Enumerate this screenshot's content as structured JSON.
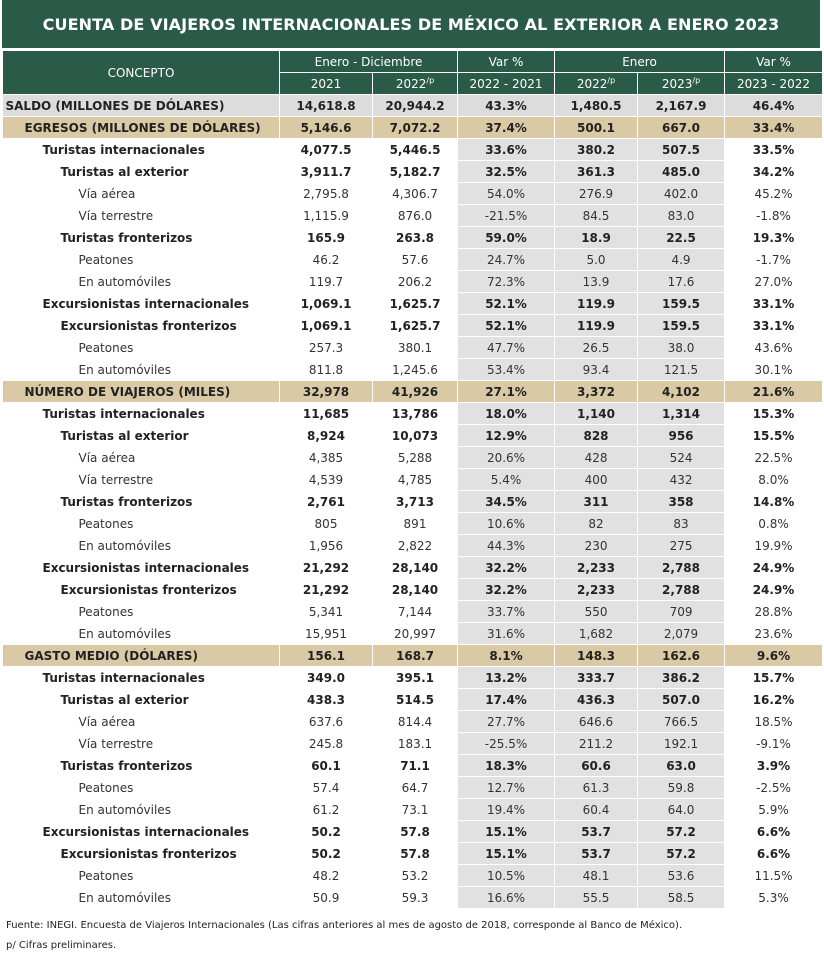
{
  "header": {
    "title": "CUENTA DE VIAJEROS INTERNACIONALES DE MÉXICO AL EXTERIOR A ENERO 2023",
    "concept": "CONCEPTO",
    "groups": [
      "Enero - Diciembre",
      "Var %",
      "Enero",
      "Var %"
    ],
    "subheaders": [
      {
        "label": "2021"
      },
      {
        "label": "2022",
        "note": "/p"
      },
      {
        "label": "2022 - 2021"
      },
      {
        "label": "2022",
        "note": "/p"
      },
      {
        "label": "2023",
        "note": "/p"
      },
      {
        "label": "2023 - 2022"
      }
    ]
  },
  "table": {
    "rows": [
      [
        "SALDO (MILLONES DE DÓLARES)",
        "14,618.8",
        "20,944.2",
        "43.3%",
        "1,480.5",
        "2,167.9",
        "46.4%"
      ],
      [
        "EGRESOS (MILLONES DE DÓLARES)",
        "5,146.6",
        "7,072.2",
        "37.4%",
        "500.1",
        "667.0",
        "33.4%"
      ],
      [
        "Turistas internacionales",
        "4,077.5",
        "5,446.5",
        "33.6%",
        "380.2",
        "507.5",
        "33.5%"
      ],
      [
        "Turistas al exterior",
        "3,911.7",
        "5,182.7",
        "32.5%",
        "361.3",
        "485.0",
        "34.2%"
      ],
      [
        "Vía aérea",
        "2,795.8",
        "4,306.7",
        "54.0%",
        "276.9",
        "402.0",
        "45.2%"
      ],
      [
        "Vía terrestre",
        "1,115.9",
        "876.0",
        "-21.5%",
        "84.5",
        "83.0",
        "-1.8%"
      ],
      [
        "Turistas fronterizos",
        "165.9",
        "263.8",
        "59.0%",
        "18.9",
        "22.5",
        "19.3%"
      ],
      [
        "Peatones",
        "46.2",
        "57.6",
        "24.7%",
        "5.0",
        "4.9",
        "-1.7%"
      ],
      [
        "En automóviles",
        "119.7",
        "206.2",
        "72.3%",
        "13.9",
        "17.6",
        "27.0%"
      ],
      [
        "Excursionistas internacionales",
        "1,069.1",
        "1,625.7",
        "52.1%",
        "119.9",
        "159.5",
        "33.1%"
      ],
      [
        "Excursionistas fronterizos",
        "1,069.1",
        "1,625.7",
        "52.1%",
        "119.9",
        "159.5",
        "33.1%"
      ],
      [
        "Peatones",
        "257.3",
        "380.1",
        "47.7%",
        "26.5",
        "38.0",
        "43.6%"
      ],
      [
        "En automóviles",
        "811.8",
        "1,245.6",
        "53.4%",
        "93.4",
        "121.5",
        "30.1%"
      ],
      [
        "NÚMERO DE VIAJEROS (MILES)",
        "32,978",
        "41,926",
        "27.1%",
        "3,372",
        "4,102",
        "21.6%"
      ],
      [
        "Turistas internacionales",
        "11,685",
        "13,786",
        "18.0%",
        "1,140",
        "1,314",
        "15.3%"
      ],
      [
        "Turistas al exterior",
        "8,924",
        "10,073",
        "12.9%",
        "828",
        "956",
        "15.5%"
      ],
      [
        "Vía aérea",
        "4,385",
        "5,288",
        "20.6%",
        "428",
        "524",
        "22.5%"
      ],
      [
        "Vía terrestre",
        "4,539",
        "4,785",
        "5.4%",
        "400",
        "432",
        "8.0%"
      ],
      [
        "Turistas fronterizos",
        "2,761",
        "3,713",
        "34.5%",
        "311",
        "358",
        "14.8%"
      ],
      [
        "Peatones",
        "805",
        "891",
        "10.6%",
        "82",
        "83",
        "0.8%"
      ],
      [
        "En automóviles",
        "1,956",
        "2,822",
        "44.3%",
        "230",
        "275",
        "19.9%"
      ],
      [
        "Excursionistas internacionales",
        "21,292",
        "28,140",
        "32.2%",
        "2,233",
        "2,788",
        "24.9%"
      ],
      [
        "Excursionistas fronterizos",
        "21,292",
        "28,140",
        "32.2%",
        "2,233",
        "2,788",
        "24.9%"
      ],
      [
        "Peatones",
        "5,341",
        "7,144",
        "33.7%",
        "550",
        "709",
        "28.8%"
      ],
      [
        "En automóviles",
        "15,951",
        "20,997",
        "31.6%",
        "1,682",
        "2,079",
        "23.6%"
      ],
      [
        "GASTO MEDIO (DÓLARES)",
        "156.1",
        "168.7",
        "8.1%",
        "148.3",
        "162.6",
        "9.6%"
      ],
      [
        "Turistas internacionales",
        "349.0",
        "395.1",
        "13.2%",
        "333.7",
        "386.2",
        "15.7%"
      ],
      [
        "Turistas al exterior",
        "438.3",
        "514.5",
        "17.4%",
        "436.3",
        "507.0",
        "16.2%"
      ],
      [
        "Vía aérea",
        "637.6",
        "814.4",
        "27.7%",
        "646.6",
        "766.5",
        "18.5%"
      ],
      [
        "Vía terrestre",
        "245.8",
        "183.1",
        "-25.5%",
        "211.2",
        "192.1",
        "-9.1%"
      ],
      [
        "Turistas fronterizos",
        "60.1",
        "71.1",
        "18.3%",
        "60.6",
        "63.0",
        "3.9%"
      ],
      [
        "Peatones",
        "57.4",
        "64.7",
        "12.7%",
        "61.3",
        "59.8",
        "-2.5%"
      ],
      [
        "En automóviles",
        "61.2",
        "73.1",
        "19.4%",
        "60.4",
        "64.0",
        "5.9%"
      ],
      [
        "Excursionistas internacionales",
        "50.2",
        "57.8",
        "15.1%",
        "53.7",
        "57.2",
        "6.6%"
      ],
      [
        "Excursionistas fronterizos",
        "50.2",
        "57.8",
        "15.1%",
        "53.7",
        "57.2",
        "6.6%"
      ],
      [
        "Peatones",
        "48.2",
        "53.2",
        "10.5%",
        "48.1",
        "53.6",
        "11.5%"
      ],
      [
        "En automóviles",
        "50.9",
        "59.3",
        "16.6%",
        "55.5",
        "58.5",
        "5.3%"
      ]
    ]
  },
  "footer": {
    "source": "Fuente: INEGI. Encuesta de Viajeros Internacionales (Las cifras anteriores al mes de agosto de 2018, corresponde al Banco de México).",
    "note": "p/ Cifras preliminares."
  }
}
